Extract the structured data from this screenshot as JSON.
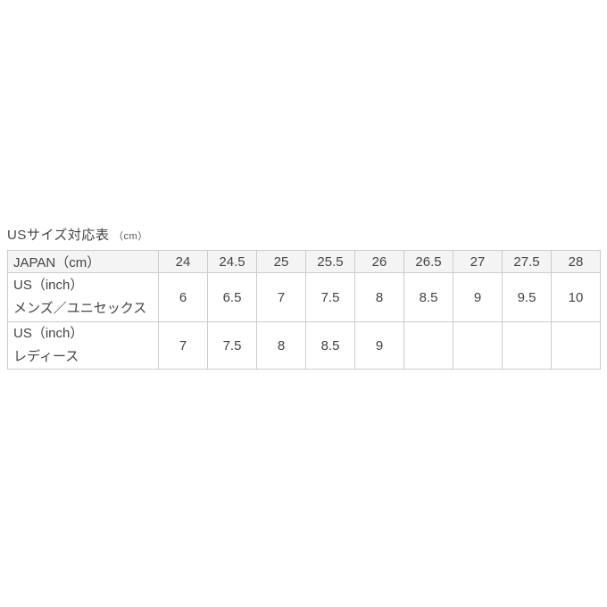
{
  "title": {
    "main": "USサイズ対応表",
    "unit": "（cm）"
  },
  "chart_data": {
    "type": "table",
    "title": "USサイズ対応表（cm）",
    "columns": [
      "JAPAN（cm）",
      "24",
      "24.5",
      "25",
      "25.5",
      "26",
      "26.5",
      "27",
      "27.5",
      "28"
    ],
    "rows": [
      {
        "label_line1": "US（inch）",
        "label_line2": "メンズ／ユニセックス",
        "values": [
          "6",
          "6.5",
          "7",
          "7.5",
          "8",
          "8.5",
          "9",
          "9.5",
          "10"
        ]
      },
      {
        "label_line1": "US（inch）",
        "label_line2": "レディース",
        "values": [
          "7",
          "7.5",
          "8",
          "8.5",
          "9",
          "",
          "",
          "",
          ""
        ]
      }
    ],
    "layout": {
      "grid": true,
      "header_background": "#f4f4f4",
      "border_color": "#cccccc",
      "empty_cells": "ladies row has no values for JAPAN 26.5, 27, 27.5, 28"
    }
  },
  "colors": {
    "background": "#ffffff",
    "header_bg": "#f4f4f4",
    "border": "#cccccc",
    "text": "#444444"
  }
}
